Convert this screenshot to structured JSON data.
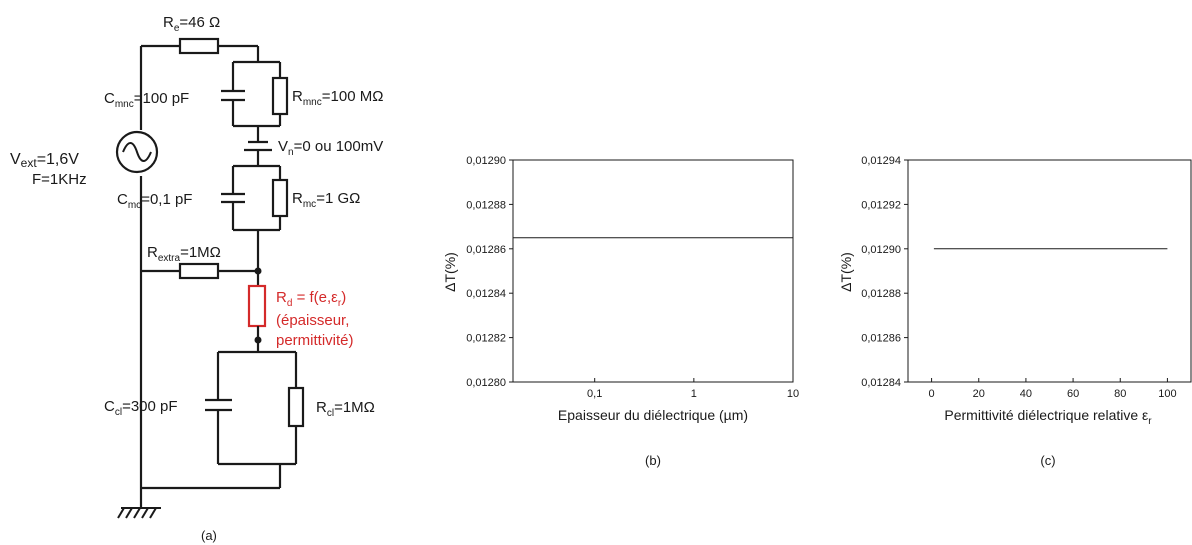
{
  "circuit": {
    "re_label": "R",
    "re_sub": "e",
    "re_value": "=46 Ω",
    "cmnc_label": "C",
    "cmnc_sub": "mnc",
    "cmnc_value": "=100 pF",
    "rmnc_label": "R",
    "rmnc_sub": "mnc",
    "rmnc_value": "=100 MΩ",
    "vext_label": "V",
    "vext_sub": "ext",
    "vext_value": "=1,6V",
    "freq_label": "F=1KHz",
    "vn_label": "V",
    "vn_sub": "n",
    "vn_value": "=0 ou 100mV",
    "cmc_label": "C",
    "cmc_sub": "mc",
    "cmc_value": "=0,1 pF",
    "rmc_label": "R",
    "rmc_sub": "mc",
    "rmc_value": "=1 GΩ",
    "rextra_label": "R",
    "rextra_sub": "extra",
    "rextra_value": "=1MΩ",
    "rd_line1_label": "R",
    "rd_line1_sub": "d",
    "rd_line1_mid": " = f(e,ε",
    "rd_line1_sub2": "r",
    "rd_line1_end": ")",
    "rd_line2": "(épaisseur,",
    "rd_line3": "permittivité)",
    "ccl_label": "C",
    "ccl_sub": "cl",
    "ccl_value": "=300 pF",
    "rcl_label": "R",
    "rcl_sub": "cl",
    "rcl_value": "=1MΩ",
    "caption": "(a)",
    "colors": {
      "wire": "#1a1a1a",
      "rd": "#d42a2a"
    }
  },
  "chart_data": [
    {
      "type": "line",
      "caption": "(b)",
      "ylabel": "ΔT(%)",
      "xlabel": "Epaisseur du diélectrique (µm)",
      "xscale": "log",
      "xlim": [
        0.015,
        10
      ],
      "ylim": [
        0.0128,
        0.0129
      ],
      "xticks": [
        "0,1",
        "1",
        "10"
      ],
      "yticks": [
        "0,01280",
        "0,01282",
        "0,01284",
        "0,01286",
        "0,01288",
        "0,01290"
      ],
      "series": [
        {
          "x": [
            0.015,
            10
          ],
          "y": [
            0.012865,
            0.012865
          ]
        }
      ]
    },
    {
      "type": "line",
      "caption": "(c)",
      "ylabel": "ΔT(%)",
      "xlabel": "Permittivité diélectrique relative ε",
      "xlabel_sub": "r",
      "xscale": "linear",
      "xlim": [
        -10,
        110
      ],
      "ylim": [
        0.01284,
        0.01294
      ],
      "xticks": [
        "0",
        "20",
        "40",
        "60",
        "80",
        "100"
      ],
      "yticks": [
        "0,01284",
        "0,01286",
        "0,01288",
        "0,01290",
        "0,01292",
        "0,01294"
      ],
      "series": [
        {
          "x": [
            1,
            100
          ],
          "y": [
            0.0129,
            0.0129
          ]
        }
      ]
    }
  ]
}
